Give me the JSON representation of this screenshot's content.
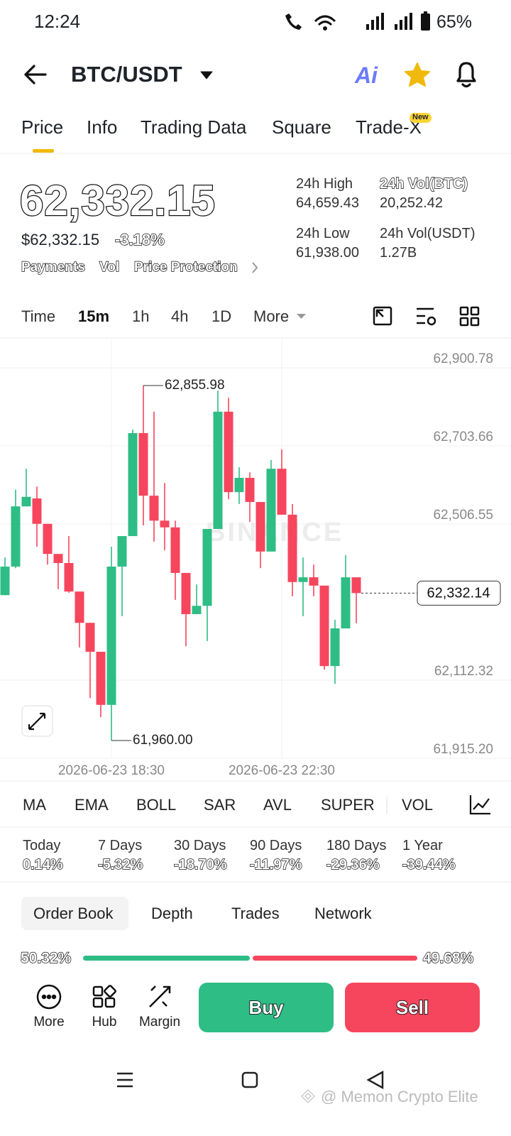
{
  "status_bar": {
    "time": "12:24",
    "battery": "65%"
  },
  "header": {
    "pair": "BTC/USDT",
    "ai": "Ai"
  },
  "tabs": [
    "Price",
    "Info",
    "Trading Data",
    "Square",
    "Trade-X"
  ],
  "tab_badge": "New",
  "price": {
    "last": "62,332.15",
    "usd": "$62,332.15",
    "change": "-3.18%",
    "links": [
      "Payments",
      "Vol",
      "Price Protection"
    ]
  },
  "stats": [
    {
      "label": "24h High",
      "value": "64,659.43"
    },
    {
      "label": "24h Vol(BTC)",
      "value": "20,252.42"
    },
    {
      "label": "24h Low",
      "value": "61,938.00"
    },
    {
      "label": "24h Vol(USDT)",
      "value": "1.27B"
    }
  ],
  "intervals": [
    "Time",
    "15m",
    "1h",
    "4h",
    "1D",
    "More"
  ],
  "chart_data": {
    "type": "candlestick",
    "watermark": "BINANCE",
    "categories": [
      null,
      null,
      null,
      null,
      null,
      null,
      null,
      null,
      null,
      null,
      "2026-06-23 18:30",
      null,
      null,
      null,
      null,
      null,
      null,
      null,
      null,
      null,
      null,
      null,
      null,
      null,
      null,
      null,
      "2026-06-23 22:30",
      null,
      null,
      null,
      null,
      null,
      null,
      null
    ],
    "open": [
      62327,
      62399,
      62551,
      62571,
      62507,
      62431,
      62408,
      62336,
      62257,
      62184,
      62050,
      62399,
      62476,
      62736,
      62578,
      62515,
      62498,
      62383,
      62279,
      62300,
      62494,
      62790,
      62587,
      62623,
      62562,
      62437,
      62646,
      62530,
      62360,
      62372,
      62351,
      62148,
      62243,
      62372
    ],
    "high": [
      62422,
      62593,
      62646,
      62601,
      62507,
      62431,
      62476,
      62336,
      62257,
      62184,
      62449,
      62476,
      62745,
      62855.98,
      62790,
      62610,
      62515,
      62383,
      62354,
      62494,
      62843,
      62825,
      62650,
      62637,
      62562,
      62668,
      62695,
      62557,
      62422,
      62404,
      62351,
      62265,
      62428,
      62372
    ],
    "low": [
      62327,
      62395,
      62551,
      62449,
      62404,
      62342,
      62333,
      62195,
      62067,
      62019,
      61960,
      62274,
      62476,
      62503,
      62462,
      62440,
      62315,
      62198,
      62279,
      62211,
      62494,
      62569,
      62557,
      62512,
      62395,
      62437,
      62530,
      62324,
      62274,
      62324,
      62139,
      62103,
      62243,
      62256
    ],
    "close": [
      62399,
      62551,
      62575,
      62507,
      62431,
      62408,
      62336,
      62257,
      62184,
      62050,
      62399,
      62476,
      62736,
      62578,
      62515,
      62498,
      62383,
      62279,
      62300,
      62494,
      62790,
      62587,
      62623,
      62562,
      62437,
      62646,
      62530,
      62360,
      62372,
      62351,
      62148,
      62243,
      62372,
      62332.14
    ],
    "up_color": "#2ebd85",
    "down_color": "#f6465d",
    "ylim": [
      61915.2,
      62972.5
    ],
    "yticks": [
      {
        "value": 62900.78,
        "label": "62,900.78"
      },
      {
        "value": 62703.66,
        "label": "62,703.66"
      },
      {
        "value": 62506.55,
        "label": "62,506.55"
      },
      {
        "value": 62112.32,
        "label": "62,112.32"
      },
      {
        "value": 61915.2,
        "label": "61,915.20"
      }
    ],
    "grid": true,
    "max_label": {
      "value": 62855.98,
      "label": "62,855.98"
    },
    "min_label": {
      "value": 61960,
      "label": "61,960.00"
    },
    "last_price": {
      "value": 62332.14,
      "label": "62,332.14"
    }
  },
  "indicators": [
    "MA",
    "EMA",
    "BOLL",
    "SAR",
    "AVL",
    "SUPER",
    "VOL"
  ],
  "performance": [
    {
      "period": "Today",
      "change": "0.14%"
    },
    {
      "period": "7 Days",
      "change": "-5.32%"
    },
    {
      "period": "30 Days",
      "change": "-18.70%"
    },
    {
      "period": "90 Days",
      "change": "-11.97%"
    },
    {
      "period": "180 Days",
      "change": "-29.36%"
    },
    {
      "period": "1 Year",
      "change": "-39.44%"
    }
  ],
  "book_tabs": [
    "Order Book",
    "Depth",
    "Trades",
    "Network"
  ],
  "order_ratio": {
    "buy": 50.32,
    "buy_label": "50.32%",
    "sell": 49.68,
    "sell_label": "49.68%"
  },
  "actions": [
    "More",
    "Hub",
    "Margin"
  ],
  "trade_buttons": [
    "Buy",
    "Sell"
  ],
  "watermark": "@ Memon Crypto Elite"
}
